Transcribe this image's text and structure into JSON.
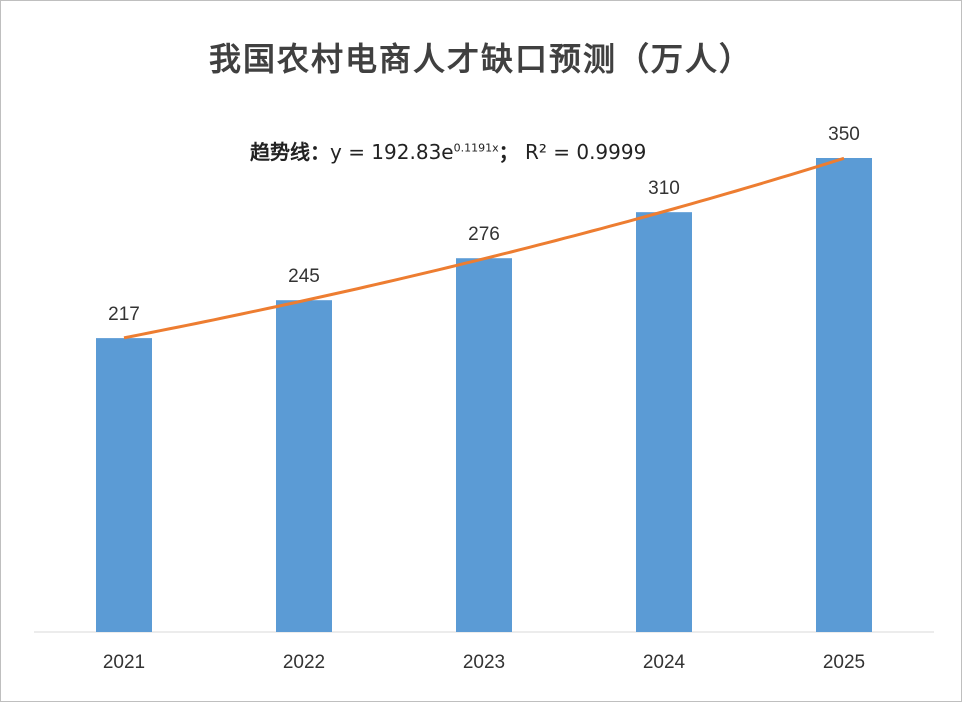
{
  "chart_data": {
    "type": "bar",
    "title": "我国农村电商人才缺口预测（万人）",
    "categories": [
      "2021",
      "2022",
      "2023",
      "2024",
      "2025"
    ],
    "values": [
      217,
      245,
      276,
      310,
      350
    ],
    "xlabel": "",
    "ylabel": "",
    "ylim": [
      0,
      350
    ],
    "grid": false,
    "bar_color": "#5b9bd5",
    "trendline": {
      "type": "exponential",
      "color": "#ed7d31",
      "label_prefix": "趋势线：",
      "equation": "y = 192.83e",
      "exponent": "0.1191x",
      "separator": "；",
      "r2_label": "R² = 0.9999",
      "a": 192.83,
      "b": 0.1191
    }
  }
}
